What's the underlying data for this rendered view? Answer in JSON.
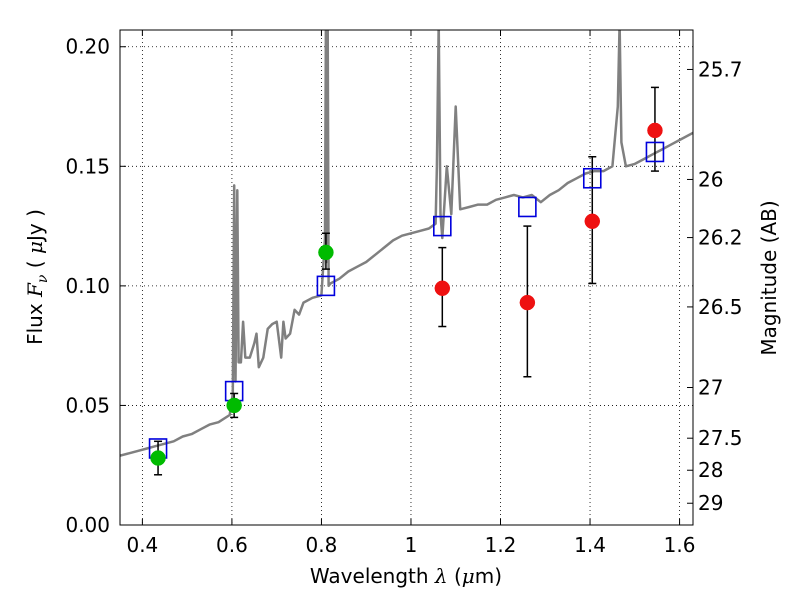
{
  "chart_data": {
    "type": "scatter",
    "xlabel": {
      "pre": "Wavelength  ",
      "sym": "λ",
      "post": " (",
      "unit_sym": "μ",
      "unit": "m)"
    },
    "ylabel": {
      "pre": "Flux  ",
      "sym": "F",
      "sub": "ν",
      "post": "  ( ",
      "unit_sym": "μ",
      "unit": "Jy )"
    },
    "y2label": "Magnitude (AB)",
    "xlim": [
      0.35,
      1.63
    ],
    "ylim": [
      0.0,
      0.207
    ],
    "grid": true,
    "x_ticks": [
      0.4,
      0.6,
      0.8,
      1.0,
      1.2,
      1.4,
      1.6
    ],
    "x_tick_labels": [
      "0.4",
      "0.6",
      "0.8",
      "1",
      "1.2",
      "1.4",
      "1.6"
    ],
    "y_ticks": [
      0.0,
      0.05,
      0.1,
      0.15,
      0.2
    ],
    "y_tick_labels": [
      "0.00",
      "0.05",
      "0.10",
      "0.15",
      "0.20"
    ],
    "mag_ticks": [
      {
        "label": "25.7",
        "flux": 0.1905
      },
      {
        "label": "26",
        "flux": 0.1445
      },
      {
        "label": "26.2",
        "flux": 0.1202
      },
      {
        "label": "26.5",
        "flux": 0.0912
      },
      {
        "label": "27",
        "flux": 0.0575
      },
      {
        "label": "27.5",
        "flux": 0.0363
      },
      {
        "label": "28",
        "flux": 0.0229
      },
      {
        "label": "29",
        "flux": 0.0091
      }
    ],
    "colors": {
      "spectrum": "#808080",
      "model": "#0000dd",
      "green": "#00bb00",
      "red": "#ee1111"
    },
    "spectrum": [
      [
        0.35,
        0.029
      ],
      [
        0.37,
        0.03
      ],
      [
        0.39,
        0.031
      ],
      [
        0.41,
        0.032
      ],
      [
        0.43,
        0.033
      ],
      [
        0.45,
        0.034
      ],
      [
        0.47,
        0.035
      ],
      [
        0.49,
        0.037
      ],
      [
        0.51,
        0.038
      ],
      [
        0.53,
        0.04
      ],
      [
        0.55,
        0.042
      ],
      [
        0.57,
        0.043
      ],
      [
        0.595,
        0.046
      ],
      [
        0.602,
        0.055
      ],
      [
        0.605,
        0.142
      ],
      [
        0.608,
        0.06
      ],
      [
        0.612,
        0.14
      ],
      [
        0.615,
        0.068
      ],
      [
        0.62,
        0.068
      ],
      [
        0.625,
        0.085
      ],
      [
        0.63,
        0.07
      ],
      [
        0.64,
        0.07
      ],
      [
        0.65,
        0.076
      ],
      [
        0.655,
        0.08
      ],
      [
        0.66,
        0.066
      ],
      [
        0.67,
        0.07
      ],
      [
        0.68,
        0.082
      ],
      [
        0.69,
        0.084
      ],
      [
        0.7,
        0.085
      ],
      [
        0.71,
        0.07
      ],
      [
        0.715,
        0.085
      ],
      [
        0.72,
        0.078
      ],
      [
        0.73,
        0.08
      ],
      [
        0.74,
        0.09
      ],
      [
        0.75,
        0.088
      ],
      [
        0.76,
        0.093
      ],
      [
        0.78,
        0.095
      ],
      [
        0.8,
        0.096
      ],
      [
        0.808,
        0.12
      ],
      [
        0.81,
        0.21
      ],
      [
        0.812,
        0.11
      ],
      [
        0.814,
        0.21
      ],
      [
        0.816,
        0.1
      ],
      [
        0.82,
        0.101
      ],
      [
        0.84,
        0.103
      ],
      [
        0.86,
        0.106
      ],
      [
        0.88,
        0.108
      ],
      [
        0.9,
        0.11
      ],
      [
        0.92,
        0.113
      ],
      [
        0.94,
        0.116
      ],
      [
        0.96,
        0.119
      ],
      [
        0.98,
        0.121
      ],
      [
        1.0,
        0.122
      ],
      [
        1.02,
        0.123
      ],
      [
        1.04,
        0.124
      ],
      [
        1.055,
        0.126
      ],
      [
        1.058,
        0.15
      ],
      [
        1.062,
        0.21
      ],
      [
        1.066,
        0.13
      ],
      [
        1.07,
        0.12
      ],
      [
        1.08,
        0.15
      ],
      [
        1.09,
        0.13
      ],
      [
        1.1,
        0.175
      ],
      [
        1.11,
        0.132
      ],
      [
        1.13,
        0.133
      ],
      [
        1.15,
        0.134
      ],
      [
        1.17,
        0.134
      ],
      [
        1.19,
        0.136
      ],
      [
        1.21,
        0.137
      ],
      [
        1.23,
        0.138
      ],
      [
        1.25,
        0.137
      ],
      [
        1.27,
        0.138
      ],
      [
        1.29,
        0.135
      ],
      [
        1.31,
        0.138
      ],
      [
        1.33,
        0.14
      ],
      [
        1.35,
        0.143
      ],
      [
        1.37,
        0.145
      ],
      [
        1.39,
        0.147
      ],
      [
        1.41,
        0.148
      ],
      [
        1.43,
        0.148
      ],
      [
        1.45,
        0.15
      ],
      [
        1.462,
        0.175
      ],
      [
        1.466,
        0.21
      ],
      [
        1.47,
        0.16
      ],
      [
        1.48,
        0.15
      ],
      [
        1.5,
        0.151
      ],
      [
        1.52,
        0.153
      ],
      [
        1.54,
        0.155
      ],
      [
        1.56,
        0.157
      ],
      [
        1.58,
        0.159
      ],
      [
        1.6,
        0.161
      ],
      [
        1.63,
        0.164
      ]
    ],
    "model_points": [
      {
        "x": 0.435,
        "y": 0.032
      },
      {
        "x": 0.605,
        "y": 0.056
      },
      {
        "x": 0.81,
        "y": 0.1
      },
      {
        "x": 1.07,
        "y": 0.125
      },
      {
        "x": 1.26,
        "y": 0.133
      },
      {
        "x": 1.405,
        "y": 0.145
      },
      {
        "x": 1.545,
        "y": 0.156
      }
    ],
    "green_points": [
      {
        "x": 0.435,
        "y": 0.028,
        "err_low": 0.021,
        "err_high": 0.035
      },
      {
        "x": 0.605,
        "y": 0.05,
        "err_low": 0.045,
        "err_high": 0.055
      },
      {
        "x": 0.81,
        "y": 0.114,
        "err_low": 0.107,
        "err_high": 0.122
      }
    ],
    "red_points": [
      {
        "x": 1.07,
        "y": 0.099,
        "err_low": 0.083,
        "err_high": 0.116
      },
      {
        "x": 1.26,
        "y": 0.093,
        "err_low": 0.062,
        "err_high": 0.125
      },
      {
        "x": 1.405,
        "y": 0.127,
        "err_low": 0.101,
        "err_high": 0.154
      },
      {
        "x": 1.545,
        "y": 0.165,
        "err_low": 0.148,
        "err_high": 0.183
      }
    ]
  }
}
